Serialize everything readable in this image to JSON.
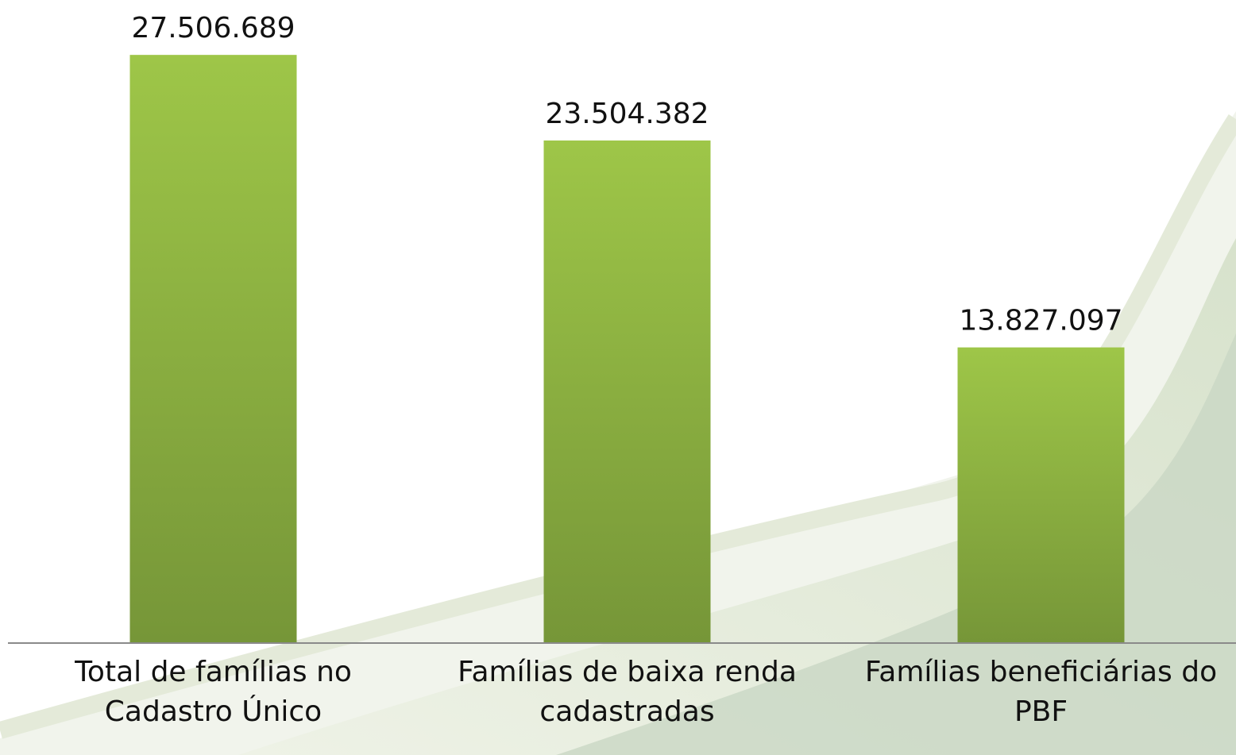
{
  "chart_data": {
    "type": "bar",
    "categories": [
      "Total de famílias no Cadastro Único",
      "Famílias de baixa renda cadastradas",
      "Famílias beneficiárias do PBF"
    ],
    "values": [
      27506689,
      23504382,
      13827097
    ],
    "value_labels": [
      "27.506.689",
      "23.504.382",
      "13.827.097"
    ],
    "color": "#8db443",
    "ylim": [
      0,
      30000000
    ]
  }
}
